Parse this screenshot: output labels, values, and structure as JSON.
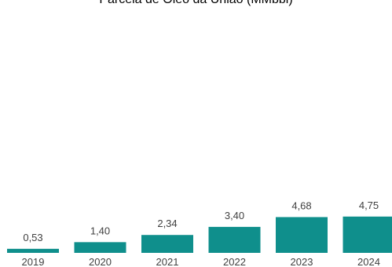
{
  "chart_data": {
    "type": "bar",
    "title": "Parcela de Óleo da União (MMbbl)",
    "categories": [
      "2019",
      "2020",
      "2021",
      "2022",
      "2023",
      "2024"
    ],
    "values": [
      0.53,
      1.4,
      2.34,
      3.4,
      4.68,
      4.75
    ],
    "value_labels": [
      "0,53",
      "1,40",
      "2,34",
      "3,40",
      "4,68",
      "4,75"
    ],
    "xlabel": "",
    "ylabel": "",
    "ylim": [
      0,
      30
    ],
    "grid": false,
    "legend": "none",
    "bar_color": "#0f8f8c"
  }
}
